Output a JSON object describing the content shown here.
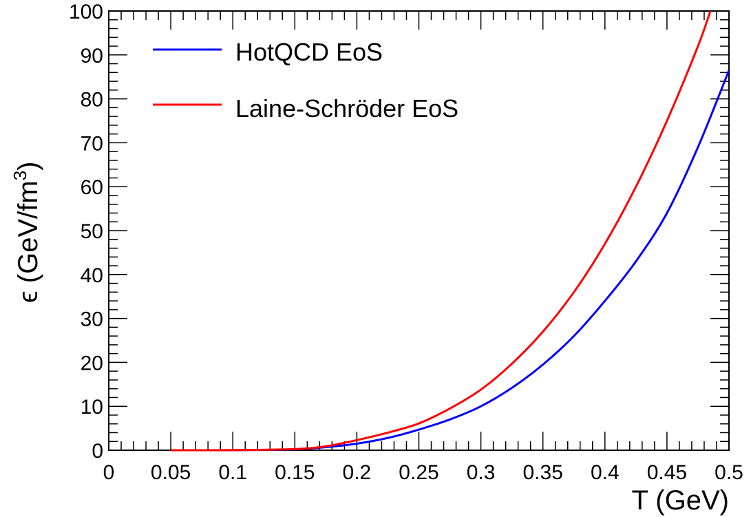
{
  "chart_data": {
    "type": "line",
    "xlabel": "T (GeV)",
    "ylabel_prefix": "ϵ (GeV/fm",
    "ylabel_sup": "3",
    "ylabel_suffix": ")",
    "xlim": [
      0,
      0.5
    ],
    "ylim": [
      0,
      100
    ],
    "x_ticks": [
      "0",
      "0.05",
      "0.1",
      "0.15",
      "0.2",
      "0.25",
      "0.3",
      "0.35",
      "0.4",
      "0.45",
      "0.5"
    ],
    "y_ticks": [
      "0",
      "10",
      "20",
      "30",
      "40",
      "50",
      "60",
      "70",
      "80",
      "90",
      "100"
    ],
    "grid": false,
    "legend_position": "top-left",
    "series": [
      {
        "name": "HotQCD EoS",
        "color": "#0000ff",
        "x": [
          0.05,
          0.1,
          0.15,
          0.175,
          0.2,
          0.225,
          0.25,
          0.275,
          0.3,
          0.325,
          0.35,
          0.375,
          0.4,
          0.425,
          0.45,
          0.475,
          0.5
        ],
        "y": [
          0,
          0.02,
          0.2,
          0.7,
          1.5,
          2.8,
          4.7,
          7.0,
          10.0,
          14.2,
          19.5,
          26.0,
          34.0,
          43.0,
          54.0,
          69.0,
          86.5
        ]
      },
      {
        "name": "Laine-Schröder EoS",
        "color": "#ff0000",
        "x": [
          0.05,
          0.1,
          0.15,
          0.175,
          0.2,
          0.225,
          0.25,
          0.275,
          0.3,
          0.325,
          0.35,
          0.375,
          0.4,
          0.425,
          0.45,
          0.475,
          0.485
        ],
        "y": [
          0,
          0.02,
          0.25,
          0.9,
          2.3,
          4.0,
          6.1,
          9.5,
          13.8,
          19.7,
          27.0,
          36.0,
          47.0,
          60.0,
          75.0,
          92.0,
          100.0
        ]
      }
    ]
  }
}
